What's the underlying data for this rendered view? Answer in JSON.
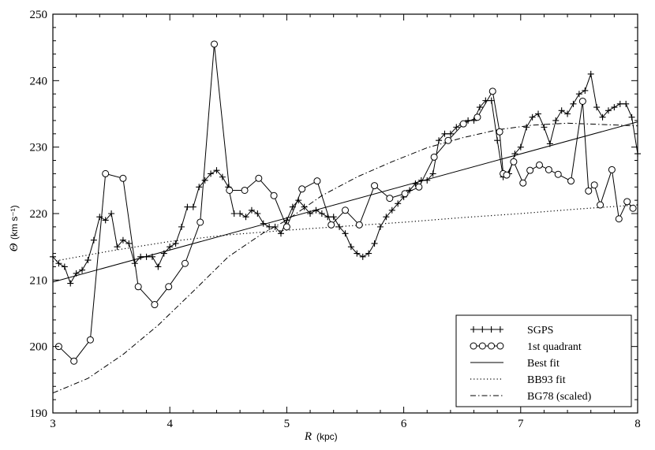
{
  "chart_data": {
    "type": "line",
    "xlabel": "R",
    "xlabel_unit": "(kpc)",
    "ylabel": "Θ",
    "ylabel_unit": "(km s⁻¹)",
    "xlim": [
      3,
      8
    ],
    "ylim": [
      190,
      250
    ],
    "x_ticks": [
      "3",
      "4",
      "5",
      "6",
      "7",
      "8"
    ],
    "y_ticks": [
      "190",
      "200",
      "210",
      "220",
      "230",
      "240",
      "250"
    ],
    "grid": false,
    "legend_position": "bottom-right",
    "series": [
      {
        "name": "SGPS",
        "marker": "plus",
        "line": "solid",
        "x": [
          3.0,
          3.05,
          3.1,
          3.15,
          3.2,
          3.25,
          3.3,
          3.35,
          3.4,
          3.45,
          3.5,
          3.55,
          3.6,
          3.65,
          3.7,
          3.75,
          3.8,
          3.85,
          3.9,
          3.95,
          4.0,
          4.05,
          4.1,
          4.15,
          4.2,
          4.25,
          4.3,
          4.35,
          4.4,
          4.45,
          4.5,
          4.55,
          4.6,
          4.65,
          4.7,
          4.75,
          4.8,
          4.85,
          4.9,
          4.95,
          5.0,
          5.05,
          5.1,
          5.15,
          5.2,
          5.25,
          5.3,
          5.35,
          5.4,
          5.45,
          5.5,
          5.55,
          5.6,
          5.65,
          5.7,
          5.75,
          5.8,
          5.85,
          5.9,
          5.95,
          6.0,
          6.05,
          6.1,
          6.15,
          6.2,
          6.25,
          6.3,
          6.35,
          6.4,
          6.45,
          6.5,
          6.55,
          6.6,
          6.65,
          6.7,
          6.75,
          6.8,
          6.85,
          6.9,
          6.95,
          7.0,
          7.05,
          7.1,
          7.15,
          7.2,
          7.25,
          7.3,
          7.35,
          7.4,
          7.45,
          7.5,
          7.55,
          7.6,
          7.65,
          7.7,
          7.75,
          7.8,
          7.85,
          7.9,
          7.95,
          8.0
        ],
        "values": [
          213.5,
          212.5,
          212,
          209.5,
          211,
          211.5,
          213,
          216,
          219.5,
          219,
          220,
          215,
          216,
          215.5,
          212.5,
          213.5,
          213.5,
          213.5,
          212,
          214,
          215,
          215.5,
          218,
          221,
          221,
          224,
          225,
          226,
          226.5,
          225.5,
          224,
          220,
          220,
          219.5,
          220.5,
          220,
          218.5,
          218,
          218,
          217,
          219,
          221,
          222,
          221,
          220,
          220.5,
          220,
          219.5,
          219.5,
          218,
          217,
          215,
          214,
          213.5,
          214,
          215.5,
          218,
          219.5,
          220.5,
          221.5,
          222.5,
          223.5,
          224.5,
          225,
          225,
          226,
          231,
          232,
          232,
          233,
          233.5,
          234,
          234,
          236,
          237,
          237,
          231,
          225.5,
          226,
          229,
          230,
          233,
          234.5,
          235,
          233,
          230.5,
          234,
          235.5,
          235,
          236.5,
          238,
          238.5,
          241,
          236,
          234.5,
          235.5,
          236,
          236.5,
          236.5,
          234.5,
          229
        ]
      },
      {
        "name": "1st quadrant",
        "marker": "circle",
        "line": "solid",
        "x": [
          3.05,
          3.18,
          3.32,
          3.45,
          3.6,
          3.73,
          3.87,
          3.99,
          4.13,
          4.26,
          4.38,
          4.51,
          4.64,
          4.76,
          4.89,
          5.0,
          5.13,
          5.26,
          5.38,
          5.5,
          5.62,
          5.75,
          5.88,
          6.01,
          6.13,
          6.26,
          6.38,
          6.51,
          6.63,
          6.76,
          6.82,
          6.85,
          6.88,
          6.94,
          7.02,
          7.08,
          7.16,
          7.24,
          7.32,
          7.43,
          7.53,
          7.58,
          7.63,
          7.68,
          7.78,
          7.84,
          7.91,
          7.96
        ],
        "values": [
          200,
          197.8,
          201,
          226,
          225.3,
          209,
          206.3,
          209,
          212.5,
          218.7,
          245.5,
          223.5,
          223.5,
          225.3,
          222.7,
          218,
          223.7,
          224.9,
          218.3,
          220.5,
          218.3,
          224.2,
          222.3,
          223,
          224,
          228.5,
          231,
          233.5,
          234.5,
          238.4,
          232.3,
          226,
          225.8,
          227.8,
          224.6,
          226.5,
          227.3,
          226.6,
          225.9,
          224.9,
          236.9,
          223.4,
          224.3,
          221.3,
          226.6,
          219.2,
          221.8,
          220.8
        ]
      },
      {
        "name": "Best fit",
        "marker": "none",
        "line": "solid",
        "x": [
          3,
          8
        ],
        "values": [
          209.7,
          233.8
        ]
      },
      {
        "name": "BB93 fit",
        "marker": "none",
        "line": "dotted",
        "x": [
          3.0,
          3.5,
          4.0,
          4.5,
          5.0,
          5.5,
          6.0,
          6.5,
          7.0,
          7.5,
          8.0
        ],
        "values": [
          212.8,
          214.4,
          215.8,
          216.8,
          217.5,
          218.1,
          218.7,
          219.4,
          220.0,
          220.7,
          221.3
        ]
      },
      {
        "name": "BG78 (scaled)",
        "marker": "none",
        "line": "dashdot",
        "x": [
          3.0,
          3.3,
          3.6,
          3.9,
          4.2,
          4.5,
          4.8,
          5.0,
          5.3,
          5.6,
          5.9,
          6.2,
          6.5,
          6.8,
          7.1,
          7.4,
          7.7,
          8.0
        ],
        "values": [
          193,
          195.2,
          198.8,
          203.2,
          208.3,
          213.5,
          217.1,
          219,
          222.7,
          225.5,
          227.8,
          229.9,
          231.4,
          232.6,
          233.3,
          233.6,
          233.4,
          233.2
        ]
      }
    ]
  }
}
